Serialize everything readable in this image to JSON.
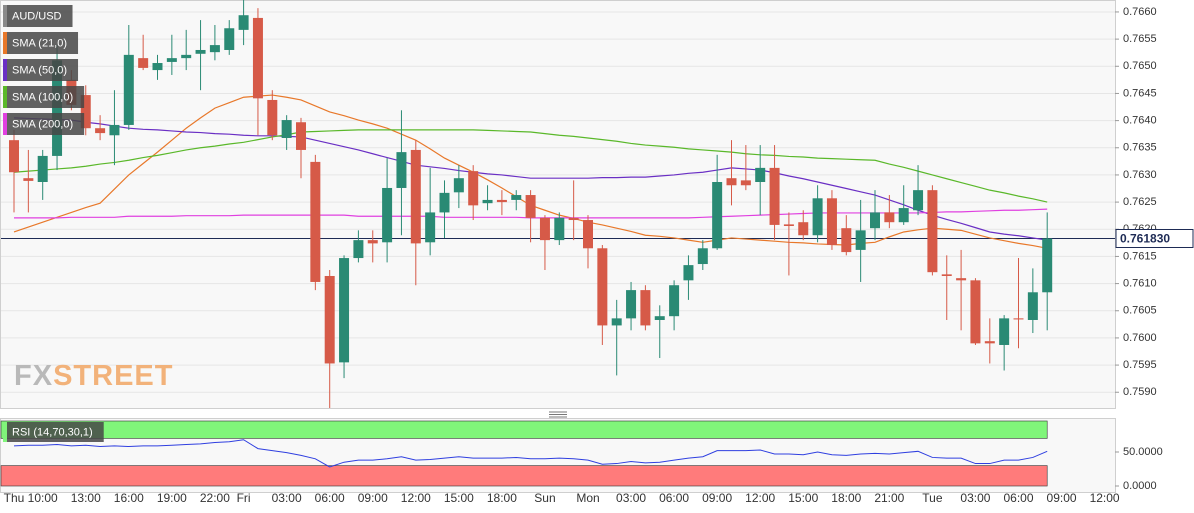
{
  "chart_data": [
    {
      "type": "candlestick",
      "symbol": "AUD/USD",
      "categories": [
        "Thu",
        null,
        "10:00",
        null,
        null,
        "13:00",
        null,
        null,
        "16:00",
        null,
        null,
        "19:00",
        null,
        null,
        "22:00",
        null,
        "Fri",
        null,
        null,
        "03:00",
        null,
        null,
        "06:00",
        null,
        null,
        "09:00",
        null,
        null,
        "12:00",
        null,
        null,
        "15:00",
        null,
        null,
        "18:00",
        null,
        null,
        "Sun",
        null,
        null,
        "Mon",
        null,
        null,
        "03:00",
        null,
        null,
        "06:00",
        null,
        null,
        "09:00",
        null,
        null,
        "12:00",
        null,
        null,
        "15:00",
        null,
        null,
        "18:00",
        null,
        null,
        "21:00",
        null,
        null,
        "Tue",
        null,
        null,
        "03:00",
        null,
        null,
        "06:00",
        null,
        null,
        "09:00",
        null,
        null,
        "12:00"
      ],
      "open": [
        0.76364,
        0.76294,
        0.76287,
        0.76335,
        0.76475,
        0.76447,
        0.76386,
        0.76373,
        0.76392,
        0.76515,
        0.76493,
        0.76508,
        0.76515,
        0.76523,
        0.76526,
        0.7653,
        0.76567,
        0.76589,
        0.76438,
        0.76368,
        0.76397,
        0.76324,
        0.76114,
        0.75955,
        0.76147,
        0.7618,
        0.76176,
        0.76276,
        0.76346,
        0.76176,
        0.76231,
        0.76268,
        0.76307,
        0.76248,
        0.76254,
        0.76254,
        0.76263,
        0.76221,
        0.7618,
        0.76221,
        0.76217,
        0.76165,
        0.76023,
        0.76036,
        0.76088,
        0.76033,
        0.7604,
        0.76106,
        0.76136,
        0.76165,
        0.76294,
        0.7629,
        0.76287,
        0.76313,
        0.76209,
        0.76213,
        0.76189,
        0.76257,
        0.76202,
        0.76162,
        0.76202,
        0.76231,
        0.76213,
        0.76235,
        0.76272,
        0.76117,
        0.7611,
        0.76106,
        0.75994,
        0.75987,
        0.76036,
        0.76033,
        0.76084,
        null,
        null,
        null,
        null
      ],
      "high": [
        0.76383,
        0.76346,
        0.76346,
        0.76539,
        0.76493,
        0.76465,
        0.7641,
        0.76456,
        0.76576,
        0.76558,
        0.76521,
        0.76558,
        0.76567,
        0.76585,
        0.76576,
        0.76585,
        0.76622,
        0.76607,
        0.76456,
        0.7641,
        0.76405,
        0.76337,
        0.76125,
        0.76152,
        0.76198,
        0.76198,
        0.76331,
        0.76419,
        0.76364,
        0.76313,
        0.7629,
        0.76318,
        0.76318,
        0.76281,
        0.76272,
        0.76272,
        0.76272,
        0.76226,
        0.76231,
        0.7629,
        0.76226,
        0.76171,
        0.7607,
        0.76103,
        0.76097,
        0.7606,
        0.76106,
        0.76152,
        0.7618,
        0.76337,
        0.76364,
        0.76355,
        0.76355,
        0.76355,
        0.76231,
        0.76235,
        0.76281,
        0.76272,
        0.76226,
        0.76254,
        0.76272,
        0.76263,
        0.76281,
        0.76318,
        0.76281,
        0.76152,
        0.76162,
        0.7611,
        0.76036,
        0.76042,
        0.76147,
        0.76128,
        0.76231,
        null,
        null,
        null,
        null
      ],
      "low": [
        0.76231,
        0.76231,
        0.76254,
        0.76309,
        0.76419,
        0.76373,
        0.76364,
        0.76318,
        0.76383,
        0.76493,
        0.76475,
        0.76484,
        0.76493,
        0.76456,
        0.76511,
        0.76521,
        0.76539,
        0.76373,
        0.76364,
        0.76346,
        0.76294,
        0.76088,
        0.75871,
        0.75926,
        0.76139,
        0.76139,
        0.76139,
        0.76189,
        0.76097,
        0.76152,
        0.76184,
        0.76239,
        0.76217,
        0.76235,
        0.76226,
        0.76235,
        0.76176,
        0.76125,
        0.76171,
        0.7618,
        0.76128,
        0.75987,
        0.75931,
        0.76014,
        0.76014,
        0.75963,
        0.76014,
        0.7607,
        0.76125,
        0.76162,
        0.76244,
        0.76272,
        0.76226,
        0.7618,
        0.76115,
        0.7618,
        0.76176,
        0.76162,
        0.76152,
        0.76103,
        0.7618,
        0.76202,
        0.76208,
        0.76226,
        0.76115,
        0.76033,
        0.76014,
        0.75987,
        0.75953,
        0.7594,
        0.75981,
        0.76009,
        0.76014,
        null,
        null,
        null,
        null
      ],
      "close": [
        0.76305,
        0.76289,
        0.76335,
        0.76511,
        0.76429,
        0.76386,
        0.76377,
        0.76392,
        0.76521,
        0.76497,
        0.76506,
        0.76515,
        0.76521,
        0.7653,
        0.76539,
        0.7657,
        0.76594,
        0.76441,
        0.76373,
        0.76401,
        0.76346,
        0.76103,
        0.75953,
        0.76147,
        0.7618,
        0.76174,
        0.76276,
        0.76342,
        0.76174,
        0.76231,
        0.76267,
        0.76294,
        0.76244,
        0.76254,
        0.7625,
        0.76263,
        0.76221,
        0.7618,
        0.76221,
        0.76217,
        0.76165,
        0.76023,
        0.76036,
        0.76088,
        0.76023,
        0.7604,
        0.76097,
        0.76134,
        0.76165,
        0.76287,
        0.76281,
        0.76281,
        0.76313,
        0.76208,
        0.76206,
        0.76189,
        0.76257,
        0.76171,
        0.76158,
        0.76198,
        0.76231,
        0.76213,
        0.76239,
        0.76272,
        0.76121,
        0.76114,
        0.76106,
        0.7599,
        0.7599,
        0.76036,
        0.76034,
        0.76084,
        0.76183,
        null,
        null,
        null,
        null
      ],
      "up_color": "#2a8a74",
      "down_color": "#d65a48",
      "series": [
        {
          "name": "SMA (21,0)",
          "color": "#e8782a",
          "values": [
            0.76195,
            0.76204,
            0.76213,
            0.76222,
            0.76231,
            0.7624,
            0.76248,
            0.76274,
            0.763,
            0.76321,
            0.76342,
            0.76364,
            0.76386,
            0.76405,
            0.76423,
            0.76433,
            0.76443,
            0.76445,
            0.76447,
            0.76443,
            0.76438,
            0.76427,
            0.76416,
            0.76409,
            0.76401,
            0.76394,
            0.76386,
            0.76375,
            0.76364,
            0.76348,
            0.76331,
            0.76318,
            0.76305,
            0.76291,
            0.76276,
            0.7626,
            0.76244,
            0.76235,
            0.76226,
            0.7622,
            0.76213,
            0.76208,
            0.76202,
            0.76196,
            0.76189,
            0.76187,
            0.76184,
            0.7618,
            0.76176,
            0.7618,
            0.76184,
            0.76182,
            0.7618,
            0.76178,
            0.76176,
            0.76175,
            0.76173,
            0.76172,
            0.76171,
            0.76174,
            0.76176,
            0.76186,
            0.76195,
            0.76199,
            0.76202,
            0.762,
            0.76198,
            0.76191,
            0.76184,
            0.76179,
            0.76174,
            0.7617,
            0.76165,
            null,
            null,
            null,
            null
          ]
        },
        {
          "name": "SMA (50,0)",
          "color": "#6a2fc4",
          "values": [
            0.76405,
            0.76404,
            0.76403,
            0.76402,
            0.76401,
            0.76397,
            0.76394,
            0.7639,
            0.76386,
            0.76384,
            0.76383,
            0.76381,
            0.76379,
            0.76378,
            0.76376,
            0.76375,
            0.76373,
            0.76372,
            0.76372,
            0.76371,
            0.7637,
            0.76364,
            0.76358,
            0.76352,
            0.76346,
            0.76339,
            0.76332,
            0.76325,
            0.76318,
            0.76315,
            0.76312,
            0.76308,
            0.76305,
            0.76302,
            0.763,
            0.76297,
            0.76294,
            0.76294,
            0.76294,
            0.76294,
            0.76294,
            0.76295,
            0.76295,
            0.76296,
            0.76296,
            0.76298,
            0.763,
            0.76303,
            0.76305,
            0.76309,
            0.76313,
            0.76311,
            0.76309,
            0.76304,
            0.76298,
            0.76293,
            0.76287,
            0.76281,
            0.76275,
            0.76269,
            0.76263,
            0.76254,
            0.76245,
            0.76235,
            0.76226,
            0.76218,
            0.76211,
            0.76203,
            0.76195,
            0.76191,
            0.76188,
            0.76184,
            0.7618,
            null,
            null,
            null,
            null
          ]
        },
        {
          "name": "SMA (100,0)",
          "color": "#5ab82a",
          "values": [
            0.76305,
            0.76307,
            0.76309,
            0.76311,
            0.76313,
            0.76316,
            0.7632,
            0.76323,
            0.76327,
            0.76332,
            0.76336,
            0.76341,
            0.76346,
            0.7635,
            0.76353,
            0.76357,
            0.7636,
            0.76365,
            0.7637,
            0.76374,
            0.76379,
            0.7638,
            0.76381,
            0.76382,
            0.76383,
            0.76383,
            0.76383,
            0.76383,
            0.76383,
            0.76383,
            0.76383,
            0.76383,
            0.76383,
            0.76382,
            0.76381,
            0.7638,
            0.76379,
            0.76376,
            0.76373,
            0.76371,
            0.76368,
            0.76365,
            0.76362,
            0.76358,
            0.76355,
            0.76353,
            0.76351,
            0.76348,
            0.76346,
            0.76344,
            0.76342,
            0.76339,
            0.76337,
            0.76336,
            0.76334,
            0.76333,
            0.76331,
            0.7633,
            0.76329,
            0.76328,
            0.76327,
            0.7632,
            0.76314,
            0.76307,
            0.763,
            0.76293,
            0.76286,
            0.76279,
            0.76272,
            0.76267,
            0.76261,
            0.76256,
            0.7625,
            null,
            null,
            null,
            null
          ]
        },
        {
          "name": "SMA (200,0)",
          "color": "#e040e0",
          "values": [
            0.76221,
            0.76221,
            0.76221,
            0.76221,
            0.76222,
            0.76222,
            0.76222,
            0.76222,
            0.76224,
            0.76224,
            0.76224,
            0.76224,
            0.76225,
            0.76225,
            0.76225,
            0.76225,
            0.76226,
            0.76226,
            0.76226,
            0.76226,
            0.76226,
            0.76226,
            0.76226,
            0.76226,
            0.76224,
            0.76224,
            0.76224,
            0.76224,
            0.76224,
            0.76224,
            0.76222,
            0.76222,
            0.76222,
            0.76222,
            0.76222,
            0.76222,
            0.76221,
            0.76221,
            0.76221,
            0.76221,
            0.76221,
            0.76221,
            0.76221,
            0.76221,
            0.76221,
            0.76221,
            0.76221,
            0.76221,
            0.76222,
            0.76223,
            0.76224,
            0.76225,
            0.76226,
            0.76227,
            0.76228,
            0.76229,
            0.7623,
            0.7623,
            0.7623,
            0.7623,
            0.7623,
            0.7623,
            0.7623,
            0.7623,
            0.76231,
            0.76232,
            0.76232,
            0.76233,
            0.76234,
            0.76235,
            0.76235,
            0.76236,
            0.76237,
            null,
            null,
            null,
            null
          ]
        }
      ],
      "ylim": [
        0.75871,
        0.76622
      ],
      "yticks": [
        {
          "value": 0.766,
          "label": "0.7660"
        },
        {
          "value": 0.7655,
          "label": "0.7655"
        },
        {
          "value": 0.765,
          "label": "0.7650"
        },
        {
          "value": 0.7645,
          "label": "0.7645"
        },
        {
          "value": 0.764,
          "label": "0.7640"
        },
        {
          "value": 0.7635,
          "label": "0.7635"
        },
        {
          "value": 0.763,
          "label": "0.7630"
        },
        {
          "value": 0.7625,
          "label": "0.7625"
        },
        {
          "value": 0.762,
          "label": "0.7620"
        },
        {
          "value": 0.7615,
          "label": "0.7615"
        },
        {
          "value": 0.761,
          "label": "0.7610"
        },
        {
          "value": 0.7605,
          "label": "0.7605"
        },
        {
          "value": 0.76,
          "label": "0.7600"
        },
        {
          "value": 0.7595,
          "label": "0.7595"
        },
        {
          "value": 0.759,
          "label": "0.7590"
        }
      ],
      "last_price": {
        "value": 0.76183,
        "label": "0.761830"
      },
      "grid": true,
      "watermark": [
        "FX",
        "STREET"
      ]
    },
    {
      "type": "line",
      "name": "RSI (14,70,30,1)",
      "color": "#2f3fe0",
      "values": [
        59,
        60,
        60,
        61,
        59,
        60,
        58,
        59,
        58,
        59,
        59,
        60,
        61,
        62,
        64,
        65,
        68,
        55,
        52,
        49,
        45,
        40,
        28,
        35,
        38,
        38,
        40,
        43,
        38,
        39,
        41,
        43,
        41,
        41,
        41,
        42,
        40,
        40,
        41,
        40,
        38,
        32,
        33,
        36,
        34,
        35,
        38,
        41,
        43,
        52,
        52,
        52,
        53,
        47,
        47,
        46,
        50,
        46,
        45,
        47,
        48,
        47,
        49,
        51,
        42,
        41,
        41,
        33,
        33,
        38,
        38,
        42,
        51,
        null,
        null,
        null,
        null
      ],
      "ylim": [
        0,
        100
      ],
      "yticks": [
        {
          "value": 50,
          "label": "50.0000"
        },
        {
          "value": 0,
          "label": "0.0000"
        }
      ],
      "overbought": 70,
      "oversold": 30,
      "overbought_color": "#80f57a",
      "oversold_color": "#ff7b7b"
    }
  ]
}
